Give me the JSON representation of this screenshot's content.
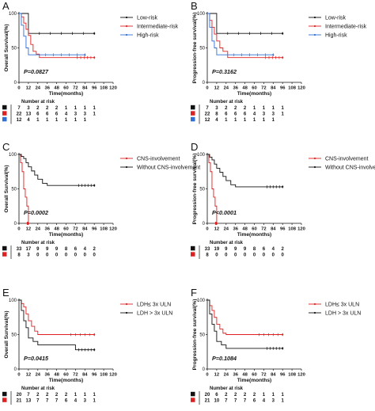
{
  "chart_data": [
    {
      "panel_label": "A",
      "type": "line",
      "ylabel": "Overall Survival(%)",
      "xlabel": "Time(months)",
      "xlim": [
        0,
        120
      ],
      "ylim": [
        0,
        100
      ],
      "x_ticks": [
        "0",
        "12",
        "24",
        "36",
        "48",
        "60",
        "72",
        "84",
        "96",
        "108",
        "120"
      ],
      "y_ticks": [
        "0",
        "50",
        "100"
      ],
      "legend_position": "top-right",
      "pvalue": "P=0.0827",
      "series": [
        {
          "name": "Low-risk",
          "color": "#111111",
          "marker": "dot",
          "x": [
            0,
            2,
            12,
            96
          ],
          "y": [
            100,
            100,
            71,
            71
          ]
        },
        {
          "name": "Intermediate-risk",
          "color": "#e02020",
          "marker": "dot",
          "x": [
            0,
            3,
            6,
            9,
            12,
            15,
            18,
            22,
            26,
            40,
            70,
            96
          ],
          "y": [
            100,
            95,
            86,
            77,
            68,
            55,
            45,
            41,
            36,
            36,
            36,
            36
          ]
        },
        {
          "name": "High-risk",
          "color": "#2f6fd6",
          "marker": "dot",
          "x": [
            0,
            3,
            6,
            9,
            12,
            24,
            84
          ],
          "y": [
            100,
            83,
            67,
            50,
            40,
            40,
            40
          ]
        }
      ],
      "risk_table": {
        "title": "Number at risk",
        "rows": [
          {
            "color": "#111111",
            "values": [
              "7",
              "3",
              "2",
              "2",
              "2",
              "1",
              "1",
              "1",
              "1"
            ]
          },
          {
            "color": "#e02020",
            "values": [
              "22",
              "13",
              "6",
              "6",
              "6",
              "4",
              "3",
              "3",
              "1"
            ]
          },
          {
            "color": "#2f6fd6",
            "values": [
              "12",
              "4",
              "1",
              "1",
              "1",
              "1",
              "1",
              "1",
              ""
            ]
          }
        ]
      }
    },
    {
      "panel_label": "B",
      "type": "line",
      "ylabel": "Progression-free survival(%)",
      "xlabel": "Time(months)",
      "xlim": [
        0,
        120
      ],
      "ylim": [
        0,
        100
      ],
      "x_ticks": [
        "0",
        "12",
        "24",
        "36",
        "48",
        "60",
        "72",
        "84",
        "96",
        "108",
        "120"
      ],
      "y_ticks": [
        "0",
        "50",
        "100"
      ],
      "legend_position": "top-right",
      "pvalue": "P=0.3162",
      "series": [
        {
          "name": "Low-risk",
          "color": "#111111",
          "marker": "dot",
          "x": [
            0,
            2,
            12,
            96
          ],
          "y": [
            100,
            100,
            71,
            71
          ]
        },
        {
          "name": "Intermediate-risk",
          "color": "#e02020",
          "marker": "dot",
          "x": [
            0,
            3,
            6,
            9,
            12,
            16,
            20,
            26,
            40,
            70,
            96
          ],
          "y": [
            100,
            90,
            80,
            70,
            60,
            50,
            45,
            36,
            36,
            36,
            36
          ]
        },
        {
          "name": "High-risk",
          "color": "#2f6fd6",
          "marker": "dot",
          "x": [
            0,
            3,
            6,
            9,
            12,
            24,
            84
          ],
          "y": [
            100,
            80,
            60,
            50,
            40,
            40,
            40
          ]
        }
      ],
      "risk_table": {
        "title": "Number at risk",
        "rows": [
          {
            "color": "#111111",
            "values": [
              "7",
              "3",
              "2",
              "2",
              "2",
              "1",
              "1",
              "1",
              "1"
            ]
          },
          {
            "color": "#e02020",
            "values": [
              "22",
              "8",
              "6",
              "6",
              "6",
              "4",
              "3",
              "3",
              "1"
            ]
          },
          {
            "color": "#2f6fd6",
            "values": [
              "12",
              "4",
              "1",
              "1",
              "1",
              "1",
              "1",
              "1",
              ""
            ]
          }
        ]
      }
    },
    {
      "panel_label": "C",
      "type": "line",
      "ylabel": "Overall Survival(%)",
      "xlabel": "Time(months)",
      "xlim": [
        0,
        120
      ],
      "ylim": [
        0,
        100
      ],
      "x_ticks": [
        "0",
        "12",
        "24",
        "36",
        "48",
        "60",
        "72",
        "84",
        "96",
        "108",
        "120"
      ],
      "y_ticks": [
        "0",
        "50",
        "100"
      ],
      "legend_position": "top-right",
      "pvalue": "P=0.0002",
      "series": [
        {
          "name": "CNS-involvement",
          "color": "#e02020",
          "marker": "dot",
          "x": [
            0,
            2,
            4,
            6,
            8,
            10,
            12
          ],
          "y": [
            100,
            88,
            75,
            50,
            38,
            25,
            0
          ]
        },
        {
          "name": "Without CNS-involvement",
          "color": "#111111",
          "marker": "dot",
          "x": [
            0,
            3,
            6,
            9,
            12,
            16,
            20,
            24,
            30,
            36,
            48,
            72,
            96
          ],
          "y": [
            100,
            97,
            94,
            88,
            82,
            76,
            70,
            64,
            58,
            55,
            55,
            55,
            55
          ]
        }
      ],
      "risk_table": {
        "title": "Number at risk",
        "rows": [
          {
            "color": "#111111",
            "values": [
              "33",
              "17",
              "9",
              "9",
              "9",
              "8",
              "6",
              "4",
              "2"
            ]
          },
          {
            "color": "#e02020",
            "values": [
              "8",
              "3",
              "0",
              "0",
              "0",
              "0",
              "0",
              "0",
              "0"
            ]
          }
        ]
      }
    },
    {
      "panel_label": "D",
      "type": "line",
      "ylabel": "Progression-free survival(%)",
      "xlabel": "Time(months)",
      "xlim": [
        0,
        120
      ],
      "ylim": [
        0,
        100
      ],
      "x_ticks": [
        "0",
        "12",
        "24",
        "36",
        "48",
        "60",
        "72",
        "84",
        "96",
        "108",
        "120"
      ],
      "y_ticks": [
        "0",
        "50",
        "100"
      ],
      "legend_position": "top-right",
      "pvalue": "P<0.0001",
      "series": [
        {
          "name": "CNS-involvement",
          "color": "#e02020",
          "marker": "dot",
          "x": [
            0,
            2,
            4,
            6,
            8,
            10,
            12
          ],
          "y": [
            100,
            88,
            75,
            50,
            38,
            25,
            0
          ]
        },
        {
          "name": "Without CNS-involvement",
          "color": "#111111",
          "marker": "dot",
          "x": [
            0,
            3,
            6,
            9,
            12,
            16,
            20,
            24,
            30,
            36,
            48,
            72,
            96
          ],
          "y": [
            100,
            96,
            92,
            86,
            80,
            74,
            68,
            62,
            56,
            53,
            53,
            53,
            53
          ]
        }
      ],
      "risk_table": {
        "title": "Number at risk",
        "rows": [
          {
            "color": "#111111",
            "values": [
              "33",
              "19",
              "9",
              "9",
              "9",
              "8",
              "6",
              "4",
              "2"
            ]
          },
          {
            "color": "#e02020",
            "values": [
              "8",
              "0",
              "0",
              "0",
              "0",
              "0",
              "0",
              "0",
              "0"
            ]
          }
        ]
      }
    },
    {
      "panel_label": "E",
      "type": "line",
      "ylabel": "Overall Survival(%)",
      "xlabel": "Time(months)",
      "xlim": [
        0,
        120
      ],
      "ylim": [
        0,
        100
      ],
      "x_ticks": [
        "0",
        "12",
        "24",
        "36",
        "48",
        "60",
        "72",
        "84",
        "96",
        "108",
        "120"
      ],
      "y_ticks": [
        "0",
        "50",
        "100"
      ],
      "legend_position": "top-right",
      "pvalue": "P=0.0415",
      "series": [
        {
          "name": "LDH≤ 3x ULN",
          "color": "#e02020",
          "marker": "dot",
          "x": [
            0,
            3,
            6,
            9,
            12,
            16,
            20,
            24,
            36,
            60,
            96
          ],
          "y": [
            100,
            95,
            90,
            80,
            70,
            62,
            55,
            50,
            50,
            50,
            50
          ]
        },
        {
          "name": "LDH > 3x ULN",
          "color": "#111111",
          "marker": "dot",
          "x": [
            0,
            3,
            6,
            9,
            12,
            18,
            24,
            36,
            72,
            96
          ],
          "y": [
            100,
            85,
            70,
            60,
            45,
            40,
            35,
            35,
            28,
            28
          ]
        }
      ],
      "risk_table": {
        "title": "Number at risk",
        "rows": [
          {
            "color": "#111111",
            "values": [
              "20",
              "7",
              "2",
              "2",
              "2",
              "2",
              "1",
              "1",
              "1"
            ]
          },
          {
            "color": "#e02020",
            "values": [
              "21",
              "13",
              "7",
              "7",
              "7",
              "6",
              "4",
              "3",
              "1"
            ]
          }
        ]
      }
    },
    {
      "panel_label": "F",
      "type": "line",
      "ylabel": "Progression-free survival(%)",
      "xlabel": "Time(months)",
      "xlim": [
        0,
        120
      ],
      "ylim": [
        0,
        100
      ],
      "x_ticks": [
        "0",
        "12",
        "24",
        "36",
        "48",
        "60",
        "72",
        "84",
        "96",
        "108",
        "120"
      ],
      "y_ticks": [
        "0",
        "50",
        "100"
      ],
      "legend_position": "top-right",
      "pvalue": "P=0.1084",
      "series": [
        {
          "name": "LDH≤ 3x ULN",
          "color": "#e02020",
          "marker": "dot",
          "x": [
            0,
            3,
            6,
            9,
            12,
            16,
            20,
            24,
            36,
            60,
            96
          ],
          "y": [
            100,
            92,
            85,
            75,
            65,
            58,
            52,
            50,
            50,
            50,
            50
          ]
        },
        {
          "name": "LDH > 3x ULN",
          "color": "#111111",
          "marker": "dot",
          "x": [
            0,
            3,
            6,
            9,
            12,
            18,
            24,
            36,
            72,
            96
          ],
          "y": [
            100,
            80,
            65,
            55,
            40,
            35,
            30,
            30,
            30,
            30
          ]
        }
      ],
      "risk_table": {
        "title": "Number at risk",
        "rows": [
          {
            "color": "#111111",
            "values": [
              "20",
              "6",
              "2",
              "2",
              "2",
              "2",
              "1",
              "1",
              "1"
            ]
          },
          {
            "color": "#e02020",
            "values": [
              "21",
              "10",
              "7",
              "7",
              "7",
              "6",
              "4",
              "3",
              "1"
            ]
          }
        ]
      }
    }
  ]
}
